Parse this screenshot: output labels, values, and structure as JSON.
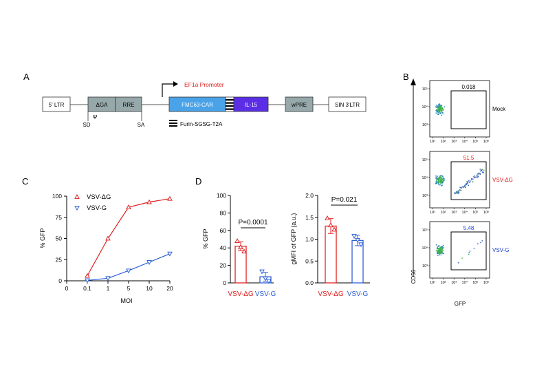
{
  "panel_labels": {
    "a": "A",
    "b": "B",
    "c": "C",
    "d": "D"
  },
  "construct": {
    "segments": {
      "ltr5": "5' LTR",
      "dga": "ΔGA",
      "rre": "RRE",
      "car": "FMC63-CAR",
      "il15": "IL-15",
      "wpre": "wPRE",
      "sin": "SIN 3'LTR"
    },
    "promoter": "EF1a Promoter",
    "psi": "Ψ",
    "sd": "SD",
    "sa": "SA",
    "linker_legend": "Furin-SGSG-T2A",
    "colors": {
      "car": "#4aa3e8",
      "il15": "#5b2ee6",
      "gray": "#97a8ab",
      "promoter_text": "#e02020"
    }
  },
  "flow": {
    "x_label": "GFP",
    "y_label": "CD56",
    "x_ticks": [
      "10¹",
      "10²",
      "10³",
      "10⁴",
      "10⁵",
      "10⁶"
    ],
    "y_ticks": [
      "10⁵",
      "10⁴",
      "10³"
    ],
    "plots": [
      {
        "sample": "Mock",
        "gate_value": "0.018",
        "color": "#000000",
        "pct": 0.018
      },
      {
        "sample": "VSV-ΔG",
        "gate_value": "51.5",
        "color": "#e02020",
        "pct": 51.5
      },
      {
        "sample": "VSV-G",
        "gate_value": "5.48",
        "color": "#2040d0",
        "pct": 5.48
      }
    ]
  },
  "chart_data": [
    {
      "type": "line",
      "panel": "C",
      "xlabel": "MOI",
      "ylabel": "% GFP",
      "x_ticks": [
        "0",
        "0.1",
        "1",
        "5",
        "10",
        "20"
      ],
      "x_categories": [
        "0.1",
        "1",
        "5",
        "10",
        "20"
      ],
      "ylim": [
        0,
        100
      ],
      "y_ticks": [
        0,
        25,
        50,
        75,
        100
      ],
      "legend_position": "top-left",
      "series": [
        {
          "name": "VSV-ΔG",
          "color": "#e02020",
          "marker": "triangle-up",
          "values": [
            6,
            50,
            87,
            93,
            97
          ]
        },
        {
          "name": "VSV-G",
          "color": "#2f5fd8",
          "marker": "triangle-down",
          "values": [
            0.5,
            3,
            12,
            22,
            32
          ]
        }
      ]
    },
    {
      "type": "bar",
      "panel": "D-left",
      "ylabel": "% GFP",
      "categories": [
        "VSV-ΔG",
        "VSV-G"
      ],
      "colors": [
        "#e02020",
        "#2f5fd8"
      ],
      "ylim": [
        0,
        100
      ],
      "y_ticks": [
        0,
        20,
        40,
        60,
        80,
        100
      ],
      "values": [
        42,
        7
      ],
      "errors": [
        5,
        5
      ],
      "points": [
        [
          48,
          41,
          36
        ],
        [
          13,
          5,
          2
        ]
      ],
      "significance": "P=0.0001"
    },
    {
      "type": "bar",
      "panel": "D-right",
      "ylabel": "gMFI of GFP (a.u.)",
      "categories": [
        "VSV-ΔG",
        "VSV-G"
      ],
      "colors": [
        "#e02020",
        "#2f5fd8"
      ],
      "ylim": [
        0,
        2.0
      ],
      "y_ticks": [
        "0.0",
        "0.5",
        "1.0",
        "1.5",
        "2.0"
      ],
      "values": [
        1.3,
        0.97
      ],
      "errors": [
        0.17,
        0.12
      ],
      "points": [
        [
          1.48,
          1.32,
          1.22
        ],
        [
          1.07,
          0.98,
          0.88
        ]
      ],
      "significance": "P=0.021"
    }
  ]
}
